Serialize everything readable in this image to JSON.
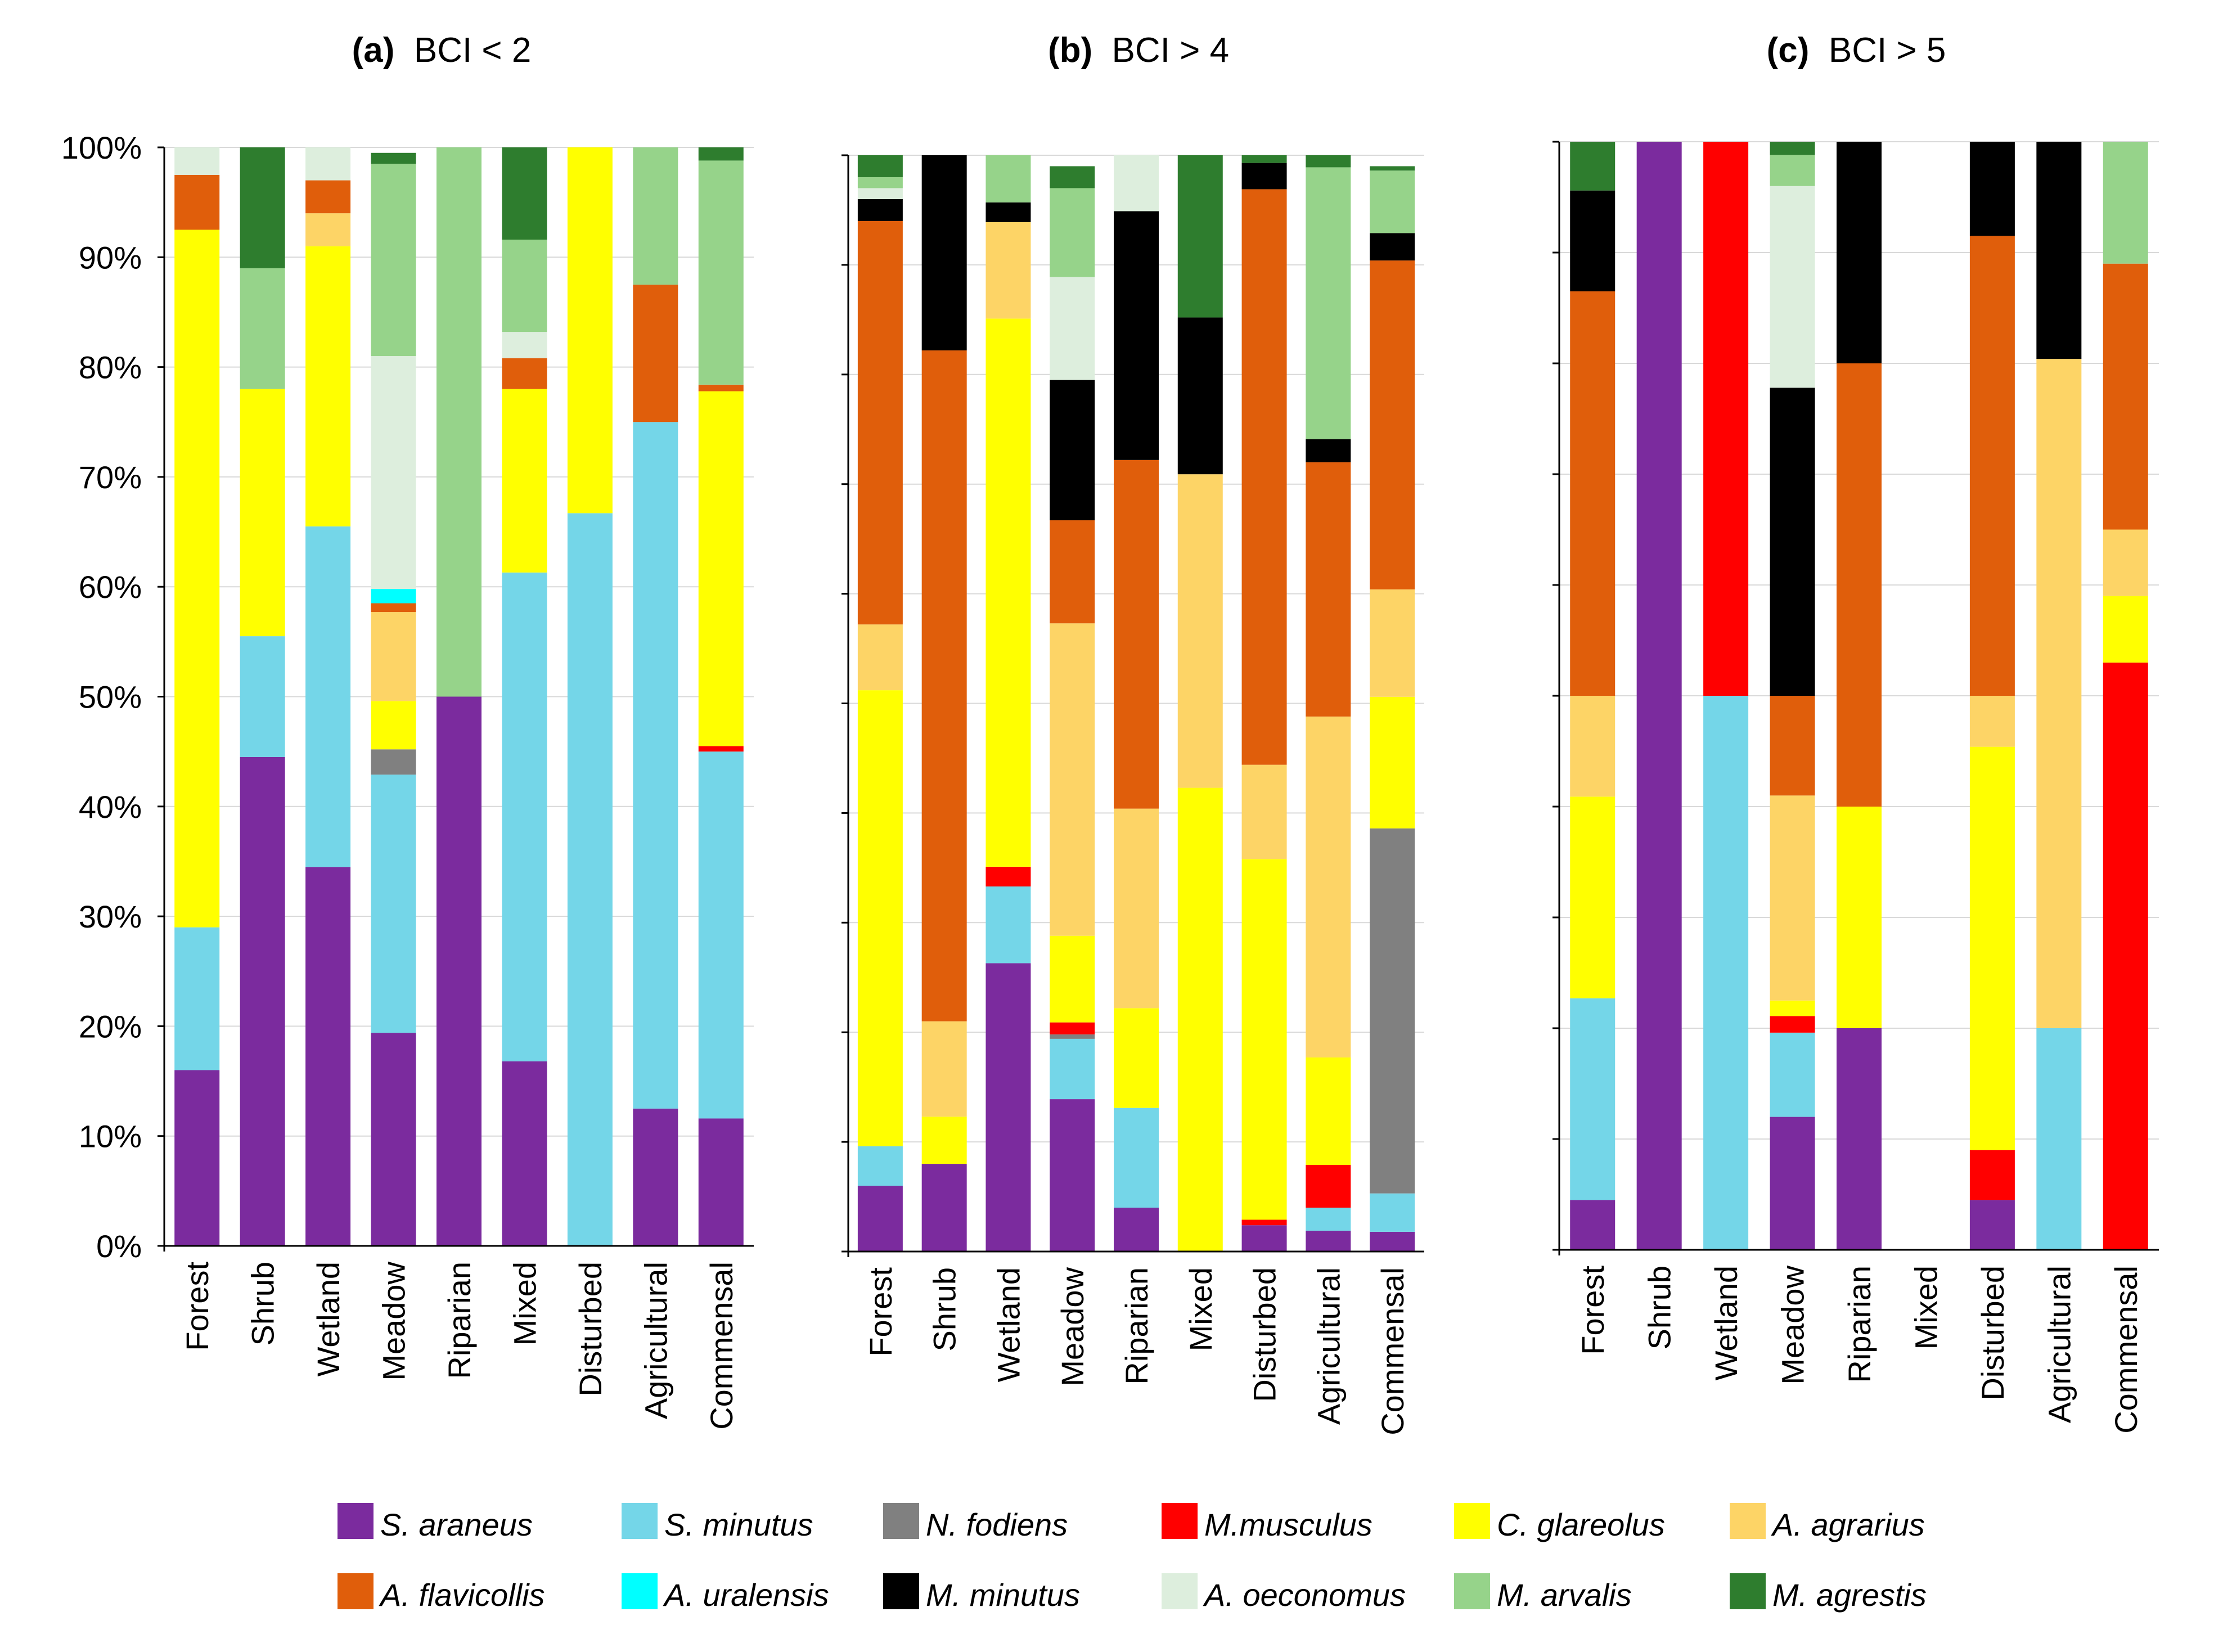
{
  "chart_data": {
    "type": "bar",
    "stacked": true,
    "percent_scale": true,
    "ylim": [
      0,
      100
    ],
    "yticks": [
      "0%",
      "10%",
      "20%",
      "30%",
      "40%",
      "50%",
      "60%",
      "70%",
      "80%",
      "90%",
      "100%"
    ],
    "species": [
      {
        "name": "S. araneus",
        "color": "#7B2B9E"
      },
      {
        "name": "S. minutus",
        "color": "#74D6E8"
      },
      {
        "name": "N. fodiens",
        "color": "#808080"
      },
      {
        "name": "M.musculus",
        "color": "#FF0000"
      },
      {
        "name": "C. glareolus",
        "color": "#FFFF00"
      },
      {
        "name": "A. agrarius",
        "color": "#FDD466"
      },
      {
        "name": "A. flavicollis",
        "color": "#E05E0B"
      },
      {
        "name": "A. uralensis",
        "color": "#00FFFF"
      },
      {
        "name": "M. minutus",
        "color": "#000000"
      },
      {
        "name": "A. oeconomus",
        "color": "#DDEEDD"
      },
      {
        "name": "M. arvalis",
        "color": "#96D38A"
      },
      {
        "name": "M. agrestis",
        "color": "#2E7D2E"
      }
    ],
    "panels": [
      {
        "title": "(a)  BCI < 2",
        "categories": [
          "Forest",
          "Shrub",
          "Wetland",
          "Meadow",
          "Riparian",
          "Mixed",
          "Disturbed",
          "Agricultural",
          "Commensal"
        ],
        "values": [
          [
            16,
            13,
            0,
            0,
            63.5,
            0,
            5,
            0,
            0,
            2.5,
            0,
            0
          ],
          [
            44.5,
            11,
            0,
            0,
            22.5,
            0,
            0,
            0,
            0,
            0,
            11,
            11
          ],
          [
            34.5,
            31,
            0,
            0,
            25.5,
            3,
            3,
            0,
            0,
            3,
            0,
            0
          ],
          [
            19.4,
            23.5,
            2.3,
            0,
            4.4,
            8.1,
            0.8,
            1.3,
            0,
            21.2,
            17.5,
            1
          ],
          [
            50,
            0,
            0,
            0,
            0,
            0,
            0,
            0,
            0,
            0,
            50,
            0
          ],
          [
            16.8,
            44.5,
            0,
            0,
            16.7,
            0,
            2.8,
            0,
            0,
            2.4,
            8.4,
            8.4
          ],
          [
            0,
            66.7,
            0,
            0,
            33.3,
            0,
            0,
            0,
            0,
            0,
            0,
            0
          ],
          [
            12.5,
            62.5,
            0,
            0,
            0,
            0,
            12.5,
            0,
            0,
            0,
            12.5,
            0
          ],
          [
            11.6,
            33.4,
            0,
            0.5,
            32.3,
            0,
            0.6,
            0,
            0,
            0,
            20.4,
            1.2
          ]
        ]
      },
      {
        "title": "(b)  BCI > 4",
        "categories": [
          "Forest",
          "Shrub",
          "Wetland",
          "Meadow",
          "Riparian",
          "Mixed",
          "Disturbed",
          "Agricultural",
          "Commensal"
        ],
        "values": [
          [
            6,
            3.6,
            0,
            0,
            41.6,
            6,
            36.8,
            0,
            2,
            1,
            1,
            2
          ],
          [
            8,
            0,
            0,
            0,
            4.3,
            8.7,
            61.2,
            0,
            17.8,
            0,
            0,
            0
          ],
          [
            26.3,
            7,
            0,
            1.8,
            50,
            8.8,
            0,
            0,
            1.8,
            0,
            4.3,
            0
          ],
          [
            13.9,
            5.5,
            0.4,
            1.1,
            7.9,
            28.5,
            9.4,
            0,
            12.8,
            9.4,
            8.1,
            2
          ],
          [
            4,
            9.1,
            0,
            0,
            9.1,
            18.2,
            31.8,
            0,
            22.7,
            5.1,
            0,
            0
          ],
          [
            0,
            0,
            0,
            0,
            42.3,
            28.6,
            0,
            0,
            14.3,
            0,
            0,
            14.8
          ],
          [
            2.4,
            0,
            0,
            0.5,
            32.9,
            8.6,
            52.5,
            0,
            2.4,
            0,
            0,
            0.7
          ],
          [
            1.9,
            2.1,
            0,
            3.9,
            9.8,
            31.1,
            23.2,
            0,
            2.1,
            0,
            24.8,
            1.1
          ],
          [
            1.8,
            3.5,
            33.3,
            0,
            12,
            9.8,
            30,
            0,
            2.5,
            0,
            5.7,
            0.4
          ]
        ]
      },
      {
        "title": "(c)  BCI > 5",
        "categories": [
          "Forest",
          "Shrub",
          "Wetland",
          "Meadow",
          "Riparian",
          "Mixed",
          "Disturbed",
          "Agricultural",
          "Commensal"
        ],
        "values": [
          [
            4.5,
            18.2,
            0,
            0,
            18.2,
            9.1,
            36.5,
            0,
            9.1,
            0,
            0,
            4.4
          ],
          [
            100,
            0,
            0,
            0,
            0,
            0,
            0,
            0,
            0,
            0,
            0,
            0
          ],
          [
            0,
            50,
            0,
            50,
            0,
            0,
            0,
            0,
            0,
            0,
            0,
            0
          ],
          [
            12,
            7.6,
            0,
            1.5,
            1.4,
            18.5,
            9,
            0,
            27.8,
            18.2,
            2.8,
            1.2
          ],
          [
            20,
            0,
            0,
            0,
            20,
            0,
            40,
            0,
            20,
            0,
            0,
            0
          ],
          [
            0,
            0,
            0,
            0,
            0,
            0,
            0,
            0,
            0,
            0,
            0,
            0
          ],
          [
            4.5,
            0,
            0,
            4.5,
            36.4,
            4.6,
            41.5,
            0,
            8.5,
            0,
            0,
            0
          ],
          [
            0,
            20,
            0,
            0,
            0,
            60.4,
            0,
            0,
            19.6,
            0,
            0,
            0
          ],
          [
            0,
            0,
            0,
            53,
            6,
            6,
            24,
            0,
            0,
            0,
            11,
            0
          ]
        ]
      }
    ]
  }
}
